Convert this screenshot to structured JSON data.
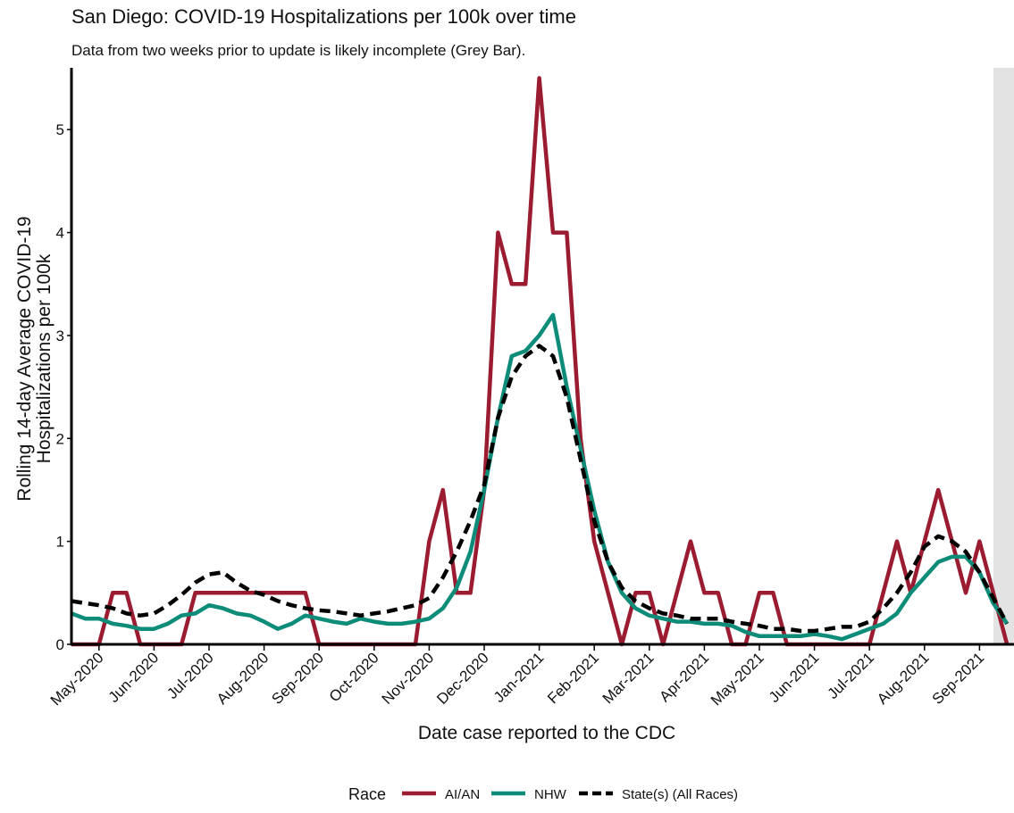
{
  "chart_data": {
    "type": "line",
    "title": "San Diego: COVID-19 Hospitalizations per 100k over time",
    "subtitle": "Data from two weeks prior to update is likely incomplete (Grey Bar).",
    "xlabel": "Date case reported to the CDC",
    "ylabel": [
      "Rolling 14-day Average COVID-19",
      "Hospitalizations per 100k"
    ],
    "legend_title": "Race",
    "categories": [
      null,
      null,
      "May-2020",
      null,
      null,
      null,
      "Jun-2020",
      null,
      null,
      null,
      "Jul-2020",
      null,
      null,
      null,
      "Aug-2020",
      null,
      null,
      null,
      "Sep-2020",
      null,
      null,
      null,
      "Oct-2020",
      null,
      null,
      null,
      "Nov-2020",
      null,
      null,
      null,
      "Dec-2020",
      null,
      null,
      null,
      "Jan-2021",
      null,
      null,
      null,
      "Feb-2021",
      null,
      null,
      null,
      "Mar-2021",
      null,
      null,
      null,
      "Apr-2021",
      null,
      null,
      null,
      "May-2021",
      null,
      null,
      null,
      "Jun-2021",
      null,
      null,
      null,
      "Jul-2021",
      null,
      null,
      null,
      "Aug-2021",
      null,
      null,
      null,
      "Sep-2021",
      null,
      null
    ],
    "ylim": [
      0,
      5.6
    ],
    "yticks": [
      0,
      1,
      2,
      3,
      4,
      5
    ],
    "series": [
      {
        "name": "AI/AN",
        "color": "#9b1b30",
        "dash": false,
        "values": [
          0,
          0,
          0,
          0.5,
          0.5,
          0,
          0,
          0,
          0,
          0.5,
          0.5,
          0.5,
          0.5,
          0.5,
          0.5,
          0.5,
          0.5,
          0.5,
          0,
          0,
          0,
          0,
          0,
          0,
          0,
          0,
          1,
          1.5,
          0.5,
          0.5,
          1.5,
          4,
          3.5,
          3.5,
          5.5,
          4,
          4,
          2,
          1,
          0.5,
          0,
          0.5,
          0.5,
          0,
          0.5,
          1,
          0.5,
          0.5,
          0,
          0,
          0.5,
          0.5,
          0,
          0,
          0,
          0,
          0,
          0,
          0,
          0.5,
          1,
          0.5,
          1,
          1.5,
          1,
          0.5,
          1,
          0.5,
          0
        ]
      },
      {
        "name": "NHW",
        "color": "#0e8c7a",
        "dash": false,
        "values": [
          0.3,
          0.25,
          0.25,
          0.2,
          0.18,
          0.15,
          0.15,
          0.2,
          0.28,
          0.3,
          0.38,
          0.35,
          0.3,
          0.28,
          0.22,
          0.15,
          0.2,
          0.28,
          0.25,
          0.22,
          0.2,
          0.25,
          0.22,
          0.2,
          0.2,
          0.22,
          0.25,
          0.35,
          0.55,
          0.9,
          1.5,
          2.2,
          2.8,
          2.85,
          3.0,
          3.2,
          2.5,
          1.9,
          1.3,
          0.8,
          0.5,
          0.35,
          0.28,
          0.25,
          0.22,
          0.22,
          0.2,
          0.2,
          0.18,
          0.12,
          0.08,
          0.08,
          0.08,
          0.08,
          0.1,
          0.08,
          0.05,
          0.1,
          0.15,
          0.2,
          0.3,
          0.5,
          0.65,
          0.8,
          0.85,
          0.85,
          0.7,
          0.4,
          0.2
        ]
      },
      {
        "name": "State(s) (All Races)",
        "color": "#000000",
        "dash": true,
        "values": [
          0.42,
          0.4,
          0.38,
          0.35,
          0.3,
          0.28,
          0.3,
          0.38,
          0.48,
          0.6,
          0.68,
          0.7,
          0.6,
          0.52,
          0.48,
          0.42,
          0.38,
          0.35,
          0.33,
          0.32,
          0.3,
          0.28,
          0.3,
          0.32,
          0.35,
          0.38,
          0.45,
          0.65,
          0.9,
          1.2,
          1.55,
          2.2,
          2.6,
          2.8,
          2.9,
          2.8,
          2.4,
          1.8,
          1.2,
          0.8,
          0.55,
          0.42,
          0.35,
          0.3,
          0.28,
          0.25,
          0.25,
          0.25,
          0.22,
          0.2,
          0.18,
          0.15,
          0.15,
          0.13,
          0.13,
          0.15,
          0.17,
          0.17,
          0.22,
          0.35,
          0.5,
          0.7,
          0.95,
          1.05,
          1.0,
          0.9,
          0.7,
          0.45,
          0.2
        ]
      }
    ]
  }
}
